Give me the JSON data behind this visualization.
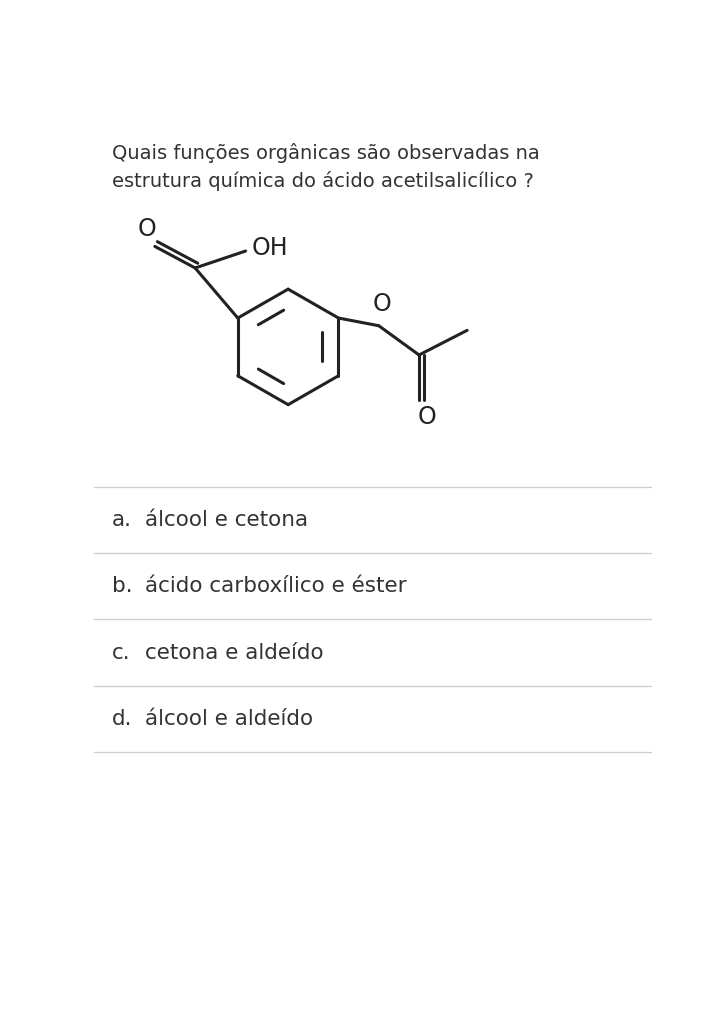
{
  "title_line1": "Quais funções orgânicas são observadas na",
  "title_line2": "estrutura química do ácido acetilsalicílico ?",
  "options": [
    {
      "letter": "a.",
      "text": "álcool e cetona"
    },
    {
      "letter": "b.",
      "text": "ácido carboxílico e éster"
    },
    {
      "letter": "c.",
      "text": "cetona e aldeído"
    },
    {
      "letter": "d.",
      "text": "álcool e aldeído"
    }
  ],
  "bg_color": "#ffffff",
  "text_color": "#333333",
  "line_color": "#cccccc",
  "mol_color": "#222222",
  "title_fontsize": 14.0,
  "option_fontsize": 15.5,
  "mol_fontsize": 17,
  "mol_lw": 2.2
}
